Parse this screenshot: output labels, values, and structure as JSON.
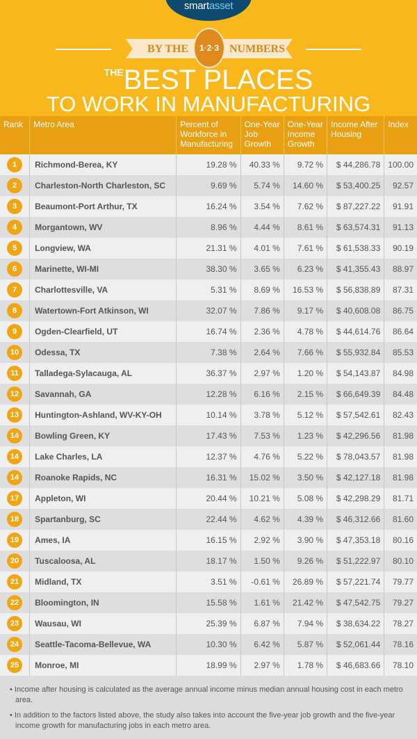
{
  "logo": {
    "text_a": "smart",
    "text_b": "asset"
  },
  "banner": {
    "left": "BY THE",
    "medal": "1·2·3",
    "right": "NUMBERS"
  },
  "title": {
    "the": "THE",
    "line1": "BEST PLACES",
    "line2": "TO WORK IN MANUFACTURING"
  },
  "table": {
    "headers": [
      "Rank",
      "Metro Area",
      "Percent of Workforce in Manufacturing",
      "One-Year Job Growth",
      "One-Year Income Growth",
      "Income After Housing",
      "Index"
    ],
    "rows": [
      [
        "1",
        "Richmond-Berea, KY",
        "19.28 %",
        "40.33 %",
        "9.72 %",
        "$ 44,286.78",
        "100.00"
      ],
      [
        "2",
        "Charleston-North Charleston, SC",
        "9.69 %",
        "5.74 %",
        "14.60 %",
        "$ 53,400.25",
        "92.57"
      ],
      [
        "3",
        "Beaumont-Port Arthur, TX",
        "16.24 %",
        "3.54 %",
        "7.62 %",
        "$ 87,227.22",
        "91.91"
      ],
      [
        "4",
        "Morgantown, WV",
        "8.96 %",
        "4.44 %",
        "8.61 %",
        "$ 63,574.31",
        "91.13"
      ],
      [
        "5",
        "Longview, WA",
        "21.31 %",
        "4.01 %",
        "7.61 %",
        "$ 61,538.33",
        "90.19"
      ],
      [
        "6",
        "Marinette, WI-MI",
        "38.30 %",
        "3.65 %",
        "6.23 %",
        "$ 41,355.43",
        "88.97"
      ],
      [
        "7",
        "Charlottesville, VA",
        "5.31 %",
        "8.69 %",
        "16.53 %",
        "$ 56,838.89",
        "87.31"
      ],
      [
        "8",
        "Watertown-Fort Atkinson, WI",
        "32.07 %",
        "7.86 %",
        "9.17 %",
        "$ 40,608.08",
        "86.75"
      ],
      [
        "9",
        "Ogden-Clearfield, UT",
        "16.74 %",
        "2.36 %",
        "4.78 %",
        "$ 44,614.76",
        "86.64"
      ],
      [
        "10",
        "Odessa, TX",
        "7.38 %",
        "2.64 %",
        "7.66 %",
        "$ 55,932.84",
        "85.53"
      ],
      [
        "11",
        "Talladega-Sylacauga, AL",
        "36.37 %",
        "2.97 %",
        "1.20 %",
        "$ 54,143.87",
        "84.98"
      ],
      [
        "12",
        "Savannah, GA",
        "12.28 %",
        "6.16 %",
        "2.15 %",
        "$ 66,649.39",
        "84.48"
      ],
      [
        "13",
        "Huntington-Ashland, WV-KY-OH",
        "10.14 %",
        "3.78 %",
        "5.12 %",
        "$ 57,542.61",
        "82.43"
      ],
      [
        "14",
        "Bowling Green, KY",
        "17.43 %",
        "7.53 %",
        "1.23 %",
        "$ 42,296.56",
        "81.98"
      ],
      [
        "14",
        "Lake Charles, LA",
        "12.37 %",
        "4.76 %",
        "5.22 %",
        "$ 78,043.57",
        "81.98"
      ],
      [
        "14",
        "Roanoke Rapids, NC",
        "16.31 %",
        "15.02 %",
        "3.50 %",
        "$ 42,127.18",
        "81.98"
      ],
      [
        "17",
        "Appleton, WI",
        "20.44 %",
        "10.21 %",
        "5.08 %",
        "$ 42,298.29",
        "81.71"
      ],
      [
        "18",
        "Spartanburg, SC",
        "22.44 %",
        "4.62 %",
        "4.39 %",
        "$ 46,312.66",
        "81.60"
      ],
      [
        "19",
        "Ames, IA",
        "16.15 %",
        "2.92 %",
        "3.90 %",
        "$ 47,353.18",
        "80.16"
      ],
      [
        "20",
        "Tuscaloosa, AL",
        "18.17 %",
        "1.50 %",
        "9.26 %",
        "$ 51,222.97",
        "80.10"
      ],
      [
        "21",
        "Midland, TX",
        "3.51 %",
        "-0.61 %",
        "26.89 %",
        "$ 57,221.74",
        "79.77"
      ],
      [
        "22",
        "Bloomington, IN",
        "15.58 %",
        "1.61 %",
        "21.42 %",
        "$ 47,542.75",
        "79.27"
      ],
      [
        "23",
        "Wausau, WI",
        "25.39 %",
        "6.87 %",
        "7.94 %",
        "$ 38,634.22",
        "78.27"
      ],
      [
        "24",
        "Seattle-Tacoma-Bellevue, WA",
        "10.30 %",
        "6.42 %",
        "5.87 %",
        "$ 52,061.44",
        "78.16"
      ],
      [
        "25",
        "Monroe, MI",
        "18.99 %",
        "2.97 %",
        "1.78 %",
        "$ 46,683.66",
        "78.10"
      ]
    ]
  },
  "notes": [
    "• Income after housing is calculated as the average annual income minus median annual housing cost in each metro area.",
    "• In addition to the factors listed above, the study also takes into account the five-year job growth and the five-year income growth for manufacturing jobs in each metro area."
  ],
  "colors": {
    "background": "#f8b81c",
    "header": "#e89f12",
    "badge": "#f0a515",
    "logo": "#0e4a6e"
  }
}
